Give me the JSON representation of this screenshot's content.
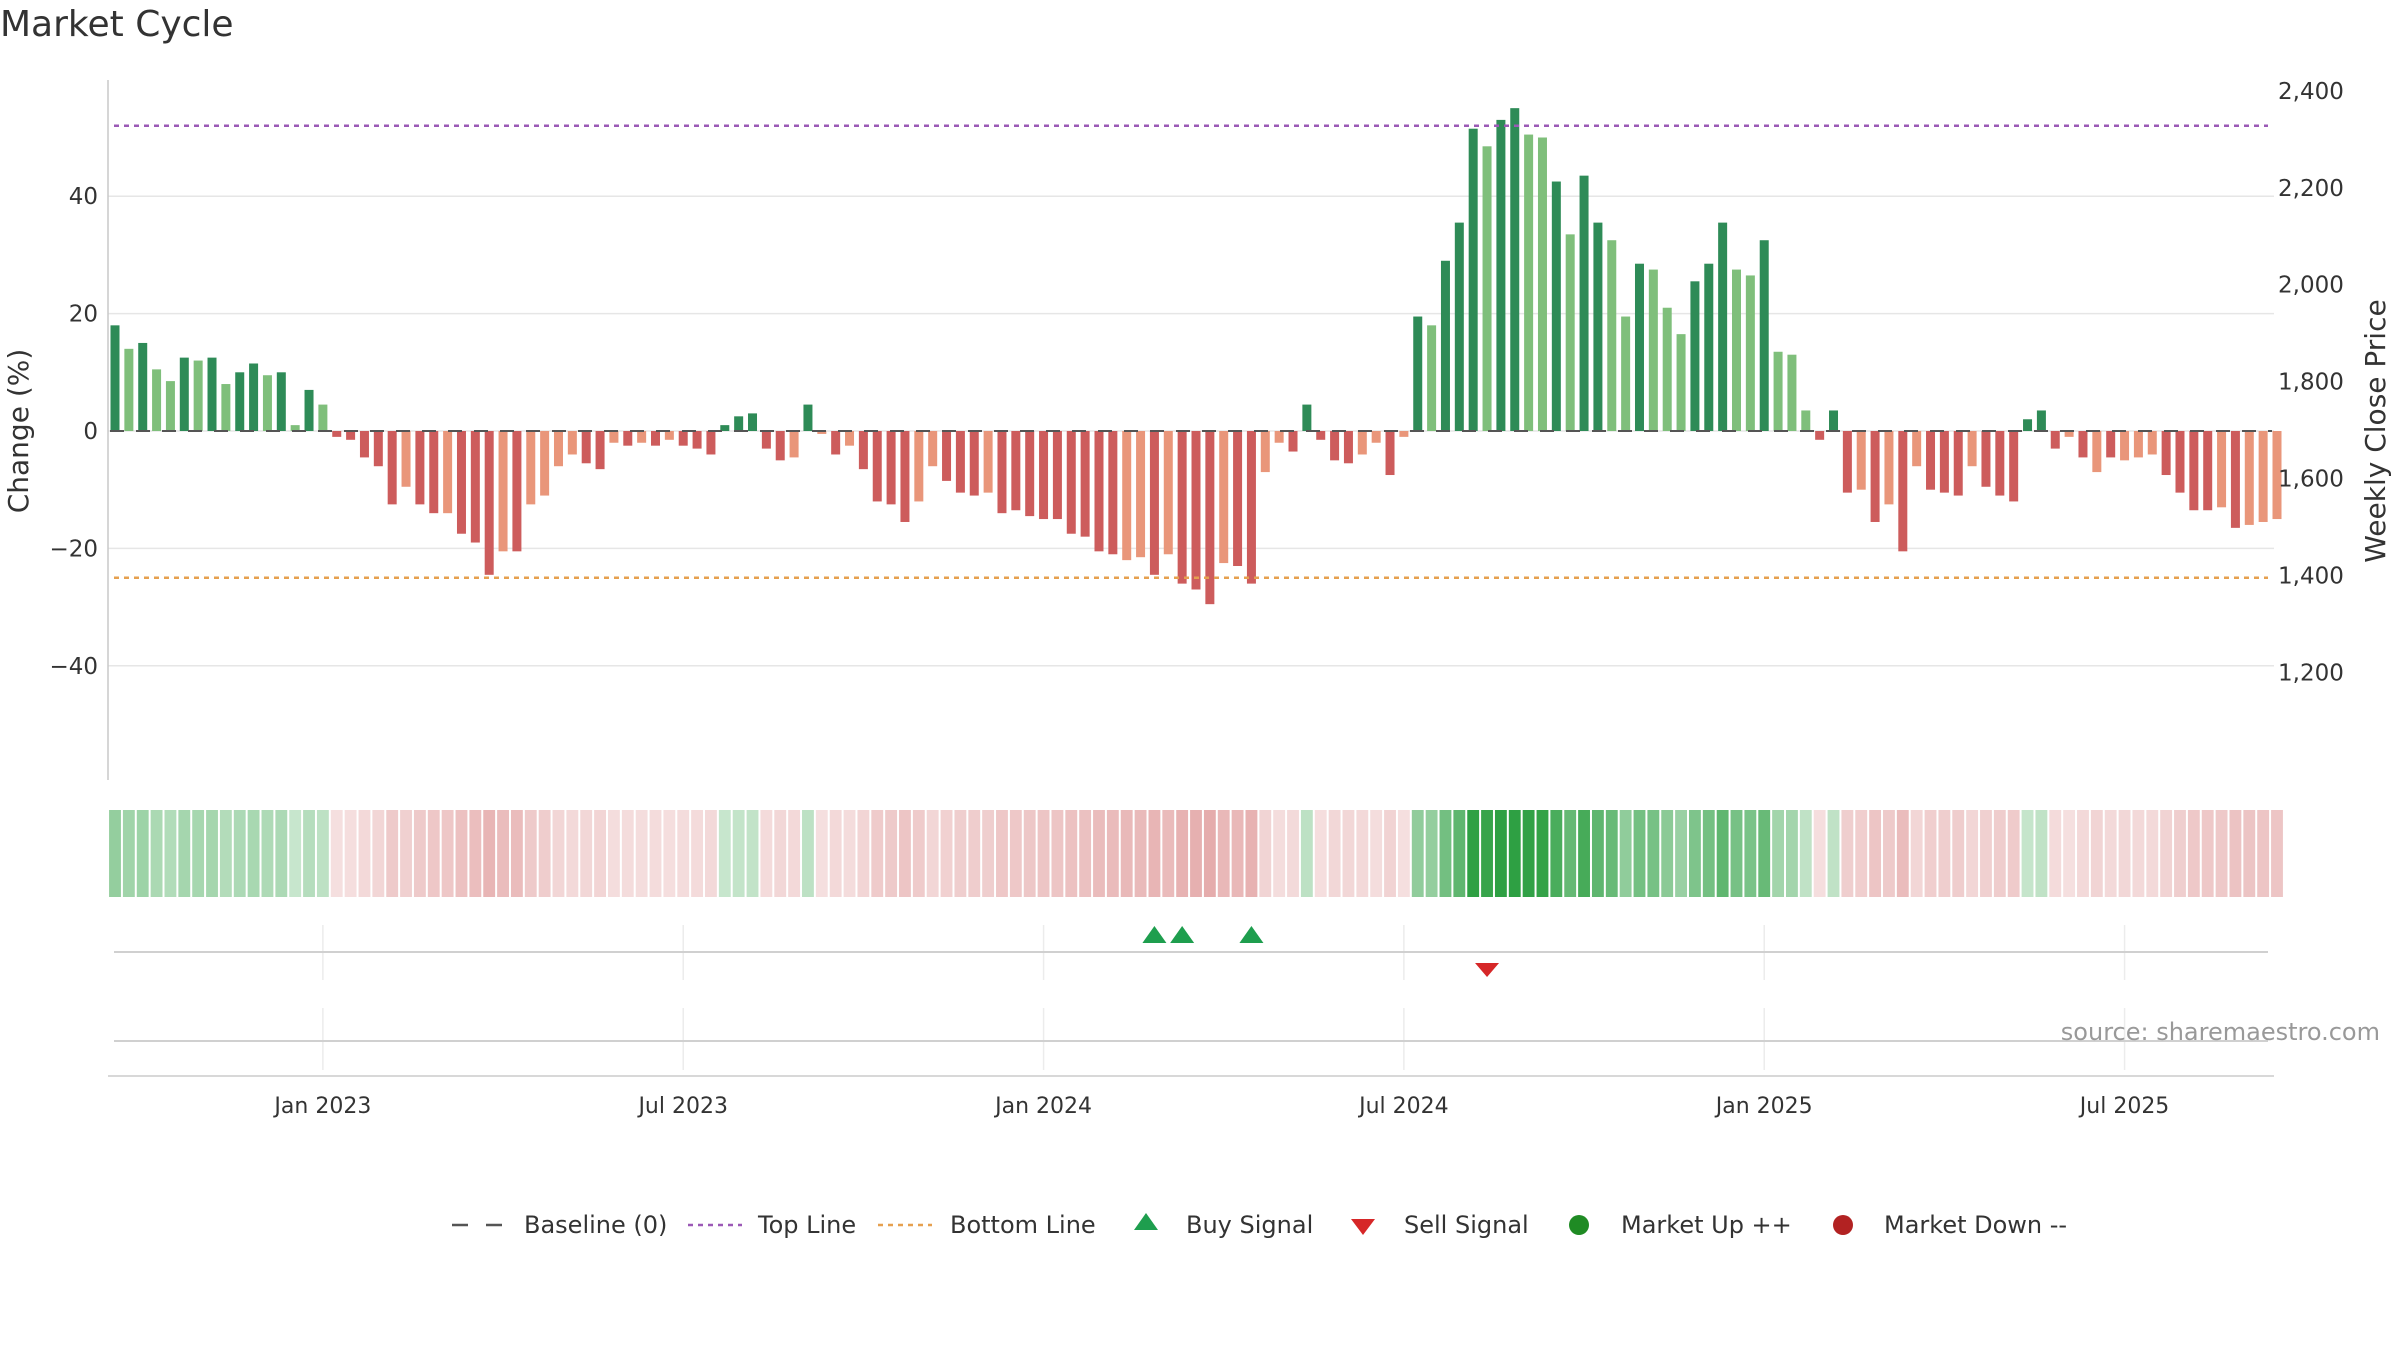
{
  "title": "Market Cycle",
  "source": "source: sharemaestro.com",
  "chart_data": {
    "type": "bar",
    "title": "Market Cycle",
    "ylabel": "Change (%)",
    "y2label": "Weekly Close Price",
    "ylim": [
      -60,
      60
    ],
    "y2lim": [
      1000,
      2450
    ],
    "yticks": [
      40,
      20,
      0,
      -20,
      -40
    ],
    "y2ticks": [
      2400,
      2200,
      2000,
      1800,
      1600,
      1400,
      1200
    ],
    "ytick_labels": [
      "40",
      "20",
      "0",
      "−20",
      "−40"
    ],
    "y2tick_labels": [
      "2,400",
      "2,200",
      "2,000",
      "1,800",
      "1,600",
      "1,400",
      "1,200"
    ],
    "xtick_labels": [
      "Jan 2023",
      "Jul 2023",
      "Jan 2024",
      "Jul 2024",
      "Jan 2025",
      "Jul 2025"
    ],
    "xtick_weeks": [
      15,
      41,
      67,
      93,
      119,
      145
    ],
    "top_line": 52,
    "bottom_line": -25,
    "grid": true,
    "legend_position": "bottom-center",
    "colors": {
      "up_strong": "#2e8b57",
      "up_light": "#7fbf7b",
      "down_strong": "#cd5c5c",
      "down_light": "#e9967a",
      "top_line": "#9b59b6",
      "bottom_line": "#e6a04f",
      "buy": "#1e9e4e",
      "sell": "#d62728",
      "market_up": "#1f8b24",
      "market_down": "#b22222"
    },
    "values": [
      18,
      14,
      15,
      10.5,
      8.5,
      12.5,
      12,
      12.5,
      8,
      10,
      11.5,
      9.5,
      10,
      1,
      7,
      4.5,
      -1,
      -1.5,
      -4.5,
      -6,
      -12.5,
      -9.5,
      -12.5,
      -14,
      -14,
      -17.5,
      -19,
      -24.5,
      -20.5,
      -20.5,
      -12.5,
      -11,
      -6,
      -4,
      -5.5,
      -6.5,
      -2,
      -2.5,
      -2,
      -2.5,
      -1.5,
      -2.5,
      -3,
      -4,
      1,
      2.5,
      3,
      -3,
      -5,
      -4.5,
      4.5,
      -0.5,
      -4,
      -2.5,
      -6.5,
      -12,
      -12.5,
      -15.5,
      -12,
      -6,
      -8.5,
      -10.5,
      -11,
      -10.5,
      -14,
      -13.5,
      -14.5,
      -15,
      -15,
      -17.5,
      -18,
      -20.5,
      -21,
      -22,
      -21.5,
      -24.5,
      -21,
      -26,
      -27,
      -29.5,
      -22.5,
      -23,
      -26,
      -7,
      -2,
      -3.5,
      4.5,
      -1.5,
      -5,
      -5.5,
      -4,
      -2,
      -7.5,
      -1,
      19.5,
      18,
      29,
      35.5,
      51.5,
      48.5,
      53,
      55,
      50.5,
      50,
      42.5,
      33.5,
      43.5,
      35.5,
      32.5,
      19.5,
      28.5,
      27.5,
      21,
      16.5,
      25.5,
      28.5,
      35.5,
      27.5,
      26.5,
      32.5,
      13.5,
      13,
      3.5,
      -1.5,
      3.5,
      -10.5,
      -10,
      -15.5,
      -12.5,
      -20.5,
      -6,
      -10,
      -10.5,
      -11,
      -6,
      -9.5,
      -11,
      -12,
      2,
      3.5,
      -3,
      -1,
      -4.5,
      -7,
      -4.5,
      -5,
      -4.5,
      -4,
      -7.5,
      -10.5,
      -13.5,
      -13.5,
      -13,
      -16.5,
      -16,
      -15.5,
      -15
    ],
    "strength": [
      1,
      0,
      1,
      0,
      0,
      1,
      0,
      1,
      0,
      1,
      1,
      0,
      1,
      0,
      1,
      0,
      1,
      1,
      1,
      1,
      1,
      0,
      1,
      1,
      0,
      1,
      1,
      1,
      0,
      1,
      0,
      0,
      0,
      0,
      1,
      1,
      0,
      1,
      0,
      1,
      0,
      1,
      1,
      1,
      1,
      1,
      1,
      1,
      1,
      0,
      1,
      0,
      1,
      0,
      1,
      1,
      1,
      1,
      0,
      0,
      1,
      1,
      1,
      0,
      1,
      1,
      1,
      1,
      1,
      1,
      1,
      1,
      1,
      0,
      0,
      1,
      0,
      1,
      1,
      1,
      0,
      1,
      1,
      0,
      0,
      1,
      1,
      1,
      1,
      1,
      0,
      0,
      1,
      0,
      1,
      0,
      1,
      1,
      1,
      0,
      1,
      1,
      0,
      0,
      1,
      0,
      1,
      1,
      0,
      0,
      1,
      0,
      0,
      0,
      1,
      1,
      1,
      0,
      0,
      1,
      0,
      0,
      0,
      1,
      1,
      1,
      0,
      1,
      0,
      1,
      0,
      1,
      1,
      1,
      0,
      1,
      1,
      1,
      1,
      1,
      1,
      0,
      1,
      0,
      1,
      0,
      0,
      0,
      1,
      1,
      1,
      1,
      0,
      1,
      0,
      0,
      0
    ],
    "buy_signal_weeks": [
      75,
      77,
      82
    ],
    "sell_signal_weeks": [
      99
    ],
    "legend": [
      "Baseline (0)",
      "Top Line",
      "Bottom Line",
      "Buy Signal",
      "Sell Signal",
      "Market Up ++",
      "Market Down --"
    ]
  }
}
